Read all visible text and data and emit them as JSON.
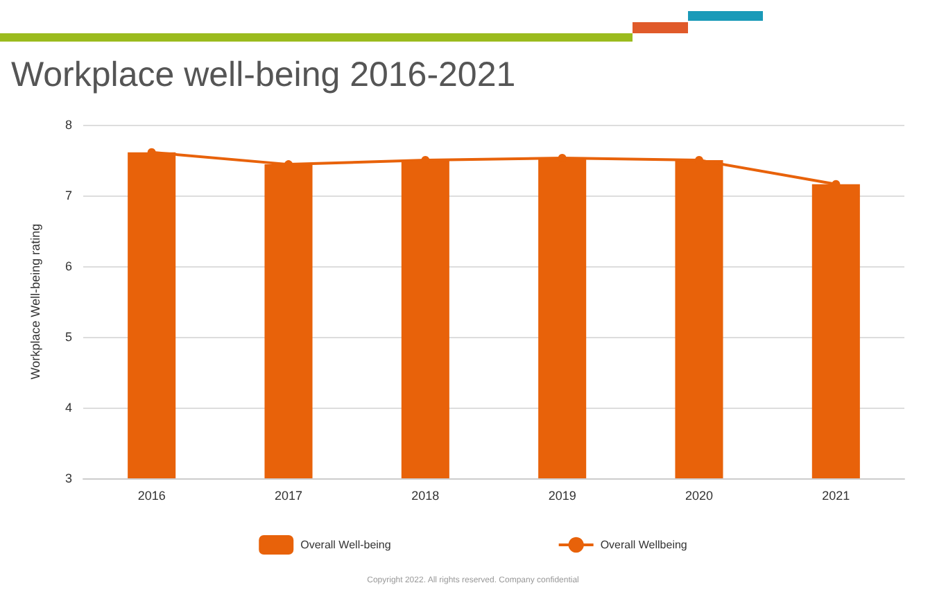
{
  "chart_data": {
    "type": "bar",
    "title": "Workplace well-being 2016-2021",
    "ylabel": "Workplace Well-being rating",
    "categories": [
      "2016",
      "2017",
      "2018",
      "2019",
      "2020",
      "2021"
    ],
    "series": [
      {
        "name": "Overall Well-being",
        "color": "#e8620a",
        "values": [
          7.61,
          7.44,
          7.5,
          7.53,
          7.5,
          7.16
        ]
      },
      {
        "name": "Overall Wellbeing",
        "type": "line",
        "color": "#e8620a",
        "values": [
          7.61,
          7.44,
          7.5,
          7.53,
          7.5,
          7.16
        ]
      }
    ],
    "ylim": [
      3,
      8
    ],
    "yticks": [
      3,
      4,
      5,
      6,
      7,
      8
    ],
    "grid": "y",
    "legend": "bottom",
    "marker": "circle",
    "annotations": [
      "Copyright 2022. All rights reserved. Company confidential"
    ]
  }
}
